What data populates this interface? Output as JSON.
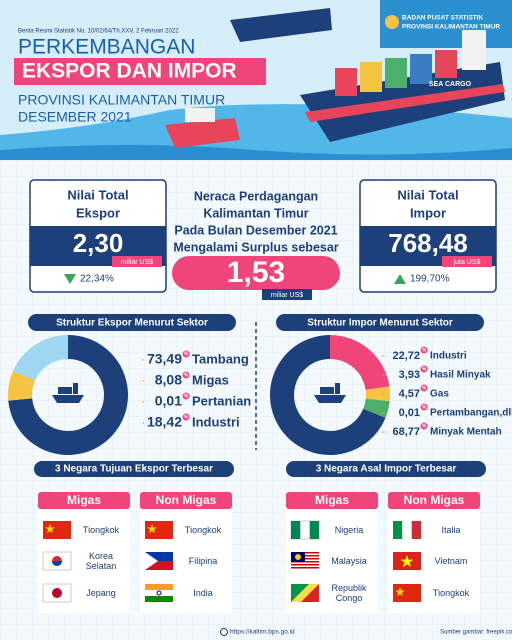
{
  "header": {
    "release": "Berita Resmi Statistik No. 10/02/64/Th.XXV, 2 Februari 2022",
    "agency": "BADAN PUSAT STATISTIK",
    "agency_region": "PROVINSI KALIMANTAN TIMUR",
    "title_line1": "PERKEMBANGAN",
    "title_line2": "EKSPOR DAN IMPOR",
    "subtitle_line1": "PROVINSI KALIMANTAN TIMUR",
    "subtitle_line2": "DESEMBER 2021",
    "ship_name": "SEA CARGO"
  },
  "ekspor_total": {
    "label_line1": "Nilai Total",
    "label_line2": "Ekspor",
    "value": "2,30",
    "unit": "miliar US$",
    "change": "22,34%"
  },
  "neraca": {
    "lines": [
      "Neraca Perdagangan",
      "Kalimantan Timur",
      "Pada Bulan Desember 2021",
      "Mengalami Surplus sebesar"
    ],
    "value": "1,53",
    "unit": "miliar US$"
  },
  "impor_total": {
    "label_line1": "Nilai Total",
    "label_line2": "Impor",
    "value": "768,48",
    "unit": "juta US$",
    "change": "199,70%"
  },
  "percent_sign": "%",
  "ekspor_sektor": {
    "title": "Struktur Ekspor Menurut Sektor",
    "items": [
      {
        "name": "Tambang",
        "value": 73.49,
        "label": "73,49",
        "color": "#1d3f7a"
      },
      {
        "name": "Migas",
        "value": 8.08,
        "label": "8,08",
        "color": "#f6c343"
      },
      {
        "name": "Pertanian",
        "value": 0.01,
        "label": "0,01",
        "color": "#4caf6a"
      },
      {
        "name": "Industri",
        "value": 18.42,
        "label": "18,42",
        "color": "#9fd7f3"
      }
    ]
  },
  "impor_sektor": {
    "title": "Struktur Impor Menurut Sektor",
    "items": [
      {
        "name": "Industri",
        "value": 22.72,
        "label": "22,72",
        "color": "#f0457a"
      },
      {
        "name": "Hasil Minyak",
        "value": 3.93,
        "label": "3,93",
        "color": "#f6c343"
      },
      {
        "name": "Gas",
        "value": 4.57,
        "label": "4,57",
        "color": "#4caf6a"
      },
      {
        "name": "Pertambangan,dll",
        "value": 0.01,
        "label": "0,01",
        "color": "#9fd7f3"
      },
      {
        "name": "Minyak Mentah",
        "value": 68.77,
        "label": "68,77",
        "color": "#1d3f7a"
      }
    ]
  },
  "ekspor_negara": {
    "title": "3 Negara Tujuan Ekspor Terbesar",
    "groups": [
      {
        "name": "Migas",
        "countries": [
          "Tiongkok",
          "Korea Selatan",
          "Jepang"
        ]
      },
      {
        "name": "Non Migas",
        "countries": [
          "Tiongkok",
          "Filipina",
          "India"
        ]
      }
    ]
  },
  "impor_negara": {
    "title": "3 Negara Asal Impor Terbesar",
    "groups": [
      {
        "name": "Migas",
        "countries": [
          "Nigeria",
          "Malaysia",
          "Republik Congo"
        ]
      },
      {
        "name": "Non Migas",
        "countries": [
          "Italia",
          "Vietnam",
          "Tiongkok"
        ]
      }
    ]
  },
  "footer": {
    "url": "https://kaltim.bps.go.id",
    "credit": "Sumber gambar: freepik.com"
  }
}
